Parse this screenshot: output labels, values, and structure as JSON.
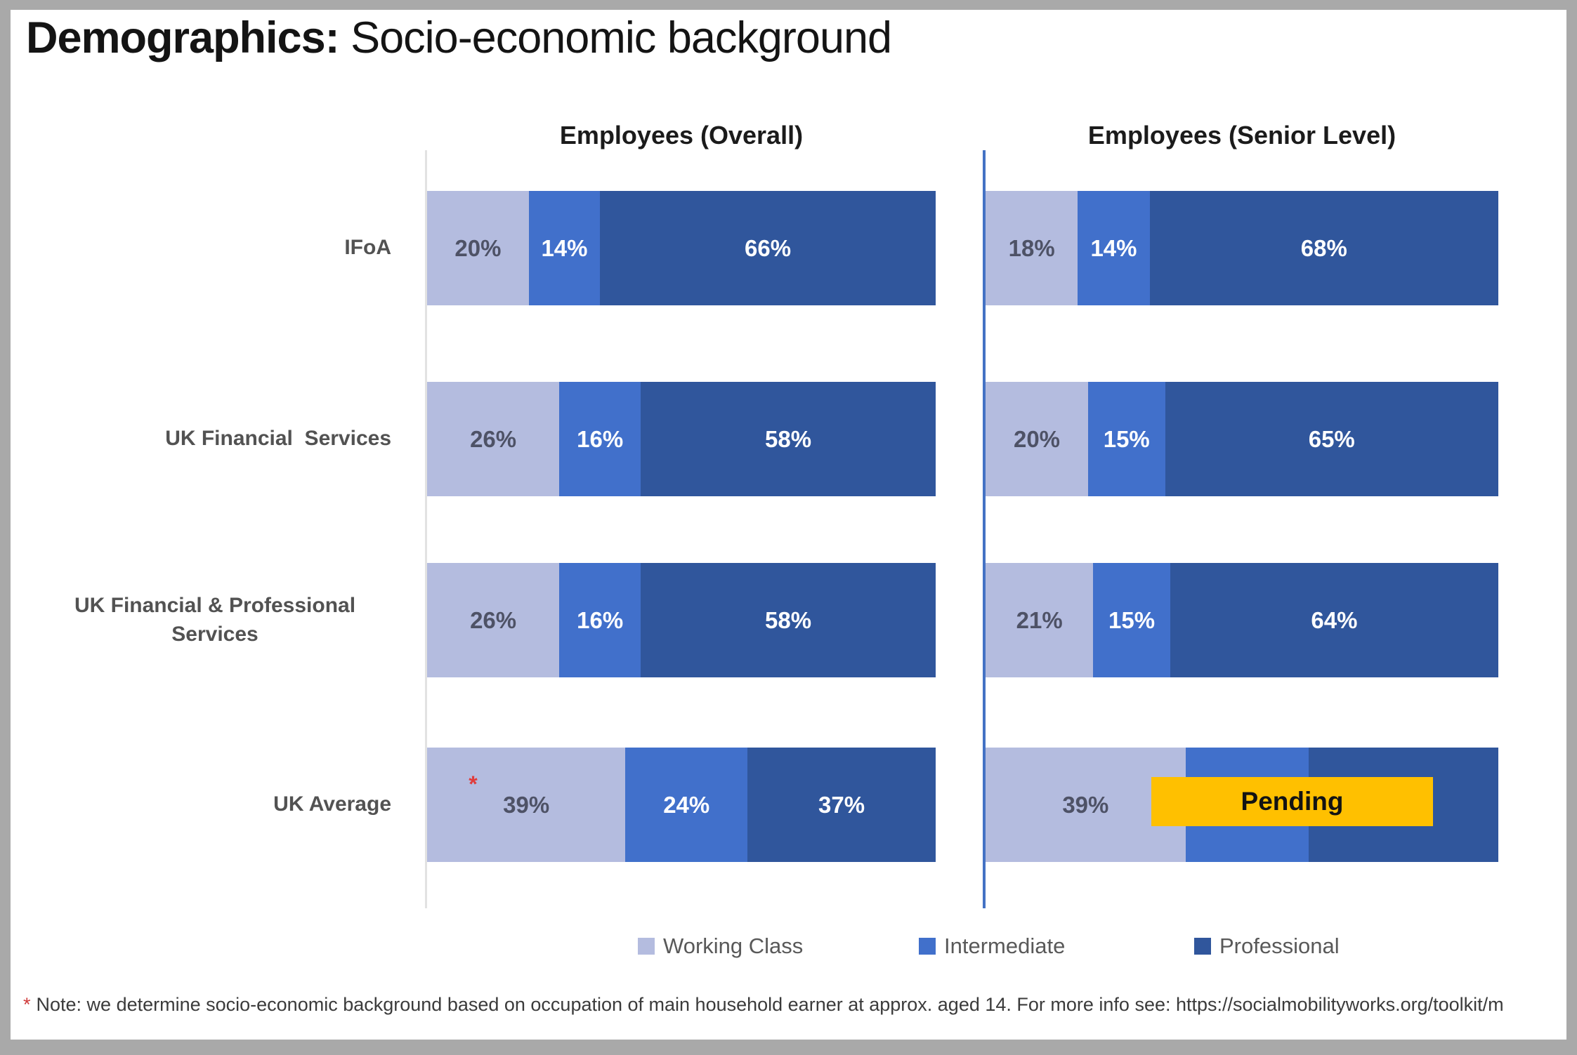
{
  "title": {
    "bold": "Demographics:",
    "rest": " Socio-economic background"
  },
  "category_labels": [
    "IFoA",
    "UK Financial  Services",
    "UK Financial & Professional Services",
    "UK Average"
  ],
  "charts": [
    {
      "header": "Employees (Overall)",
      "bars": [
        {
          "segments": [
            {
              "key": "working",
              "pct": 20,
              "label": "20%"
            },
            {
              "key": "intermediate",
              "pct": 14,
              "label": "14%"
            },
            {
              "key": "professional",
              "pct": 66,
              "label": "66%"
            }
          ]
        },
        {
          "segments": [
            {
              "key": "working",
              "pct": 26,
              "label": "26%"
            },
            {
              "key": "intermediate",
              "pct": 16,
              "label": "16%"
            },
            {
              "key": "professional",
              "pct": 58,
              "label": "58%"
            }
          ]
        },
        {
          "segments": [
            {
              "key": "working",
              "pct": 26,
              "label": "26%"
            },
            {
              "key": "intermediate",
              "pct": 16,
              "label": "16%"
            },
            {
              "key": "professional",
              "pct": 58,
              "label": "58%"
            }
          ]
        },
        {
          "segments": [
            {
              "key": "working",
              "pct": 39,
              "label": "39%",
              "marker": "*"
            },
            {
              "key": "intermediate",
              "pct": 24,
              "label": "24%"
            },
            {
              "key": "professional",
              "pct": 37,
              "label": "37%"
            }
          ]
        }
      ]
    },
    {
      "header": "Employees (Senior Level)",
      "bars": [
        {
          "segments": [
            {
              "key": "working",
              "pct": 18,
              "label": "18%"
            },
            {
              "key": "intermediate",
              "pct": 14,
              "label": "14%"
            },
            {
              "key": "professional",
              "pct": 68,
              "label": "68%"
            }
          ]
        },
        {
          "segments": [
            {
              "key": "working",
              "pct": 20,
              "label": "20%"
            },
            {
              "key": "intermediate",
              "pct": 15,
              "label": "15%"
            },
            {
              "key": "professional",
              "pct": 65,
              "label": "65%"
            }
          ]
        },
        {
          "segments": [
            {
              "key": "working",
              "pct": 21,
              "label": "21%"
            },
            {
              "key": "intermediate",
              "pct": 15,
              "label": "15%"
            },
            {
              "key": "professional",
              "pct": 64,
              "label": "64%"
            }
          ]
        },
        {
          "segments": [
            {
              "key": "working",
              "pct": 39,
              "label": "39%"
            },
            {
              "key": "intermediate",
              "pct": 24,
              "label": ""
            },
            {
              "key": "professional",
              "pct": 37,
              "label": ""
            }
          ],
          "overlay": {
            "label": "Pending"
          }
        }
      ]
    }
  ],
  "legend": {
    "items": [
      {
        "label": "Working Class",
        "color": "#b4bcdf"
      },
      {
        "label": "Intermediate",
        "color": "#4170cb"
      },
      {
        "label": "Professional",
        "color": "#30569c"
      }
    ]
  },
  "footnote": {
    "marker": "*",
    "text": "Note: we determine socio-economic background based on occupation of main household earner at approx. aged 14. For more info see: https://socialmobilityworks.org/toolkit/m"
  },
  "colors": {
    "working": "#b4bcdf",
    "intermediate": "#4170cb",
    "professional": "#30569c",
    "pending_bg": "#ffc000",
    "pending_text": "#131313",
    "asterisk": "#e03c3c",
    "axis_left": "#e2e2e2",
    "axis_right": "#4472c4",
    "value_on_light": "#4e5266",
    "value_on_dark": "#ffffff"
  },
  "chart_data": [
    {
      "type": "bar",
      "orientation": "horizontal_stacked",
      "title": "Employees (Overall)",
      "categories": [
        "IFoA",
        "UK Financial Services",
        "UK Financial & Professional Services",
        "UK Average"
      ],
      "series": [
        {
          "name": "Working Class",
          "values": [
            20,
            26,
            26,
            39
          ]
        },
        {
          "name": "Intermediate",
          "values": [
            14,
            16,
            16,
            24
          ]
        },
        {
          "name": "Professional",
          "values": [
            66,
            58,
            58,
            37
          ]
        }
      ],
      "value_unit": "%",
      "xlim": [
        0,
        100
      ],
      "grid": false,
      "legend_position": "bottom",
      "annotations": [
        "red asterisk marker on UK Average Working Class segment"
      ]
    },
    {
      "type": "bar",
      "orientation": "horizontal_stacked",
      "title": "Employees (Senior Level)",
      "categories": [
        "IFoA",
        "UK Financial Services",
        "UK Financial & Professional Services",
        "UK Average"
      ],
      "series": [
        {
          "name": "Working Class",
          "values": [
            18,
            20,
            21,
            39
          ]
        },
        {
          "name": "Intermediate",
          "values": [
            14,
            15,
            15,
            null
          ]
        },
        {
          "name": "Professional",
          "values": [
            68,
            65,
            64,
            null
          ]
        }
      ],
      "value_unit": "%",
      "xlim": [
        0,
        100
      ],
      "grid": false,
      "legend_position": "bottom",
      "annotations": [
        "UK Average Intermediate/Professional senior-level values covered by a gold Pending label"
      ]
    }
  ]
}
